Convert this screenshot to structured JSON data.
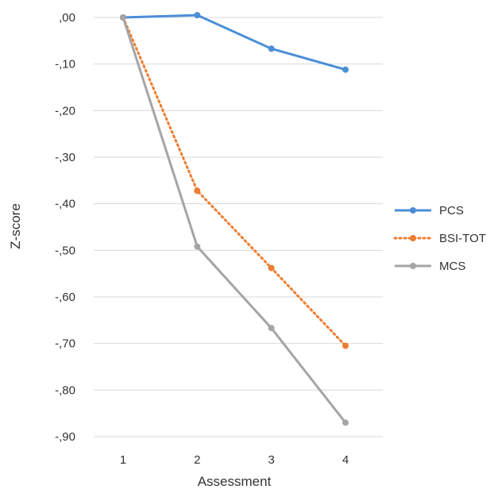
{
  "chart_data": {
    "type": "line",
    "title": "",
    "xlabel": "Assessment",
    "ylabel": "Z-score",
    "x": [
      1,
      2,
      3,
      4
    ],
    "ylim": [
      -0.9,
      0.0
    ],
    "y_ticks": [
      0.0,
      -0.1,
      -0.2,
      -0.3,
      -0.4,
      -0.5,
      -0.6,
      -0.7,
      -0.8,
      -0.9
    ],
    "y_tick_labels": [
      ",00",
      "-,10",
      "-,20",
      "-,30",
      "-,40",
      "-,50",
      "-,60",
      "-,70",
      "-,80",
      "-,90"
    ],
    "x_tick_labels": [
      "1",
      "2",
      "3",
      "4"
    ],
    "grid": "horizontal",
    "legend_position": "right",
    "series": [
      {
        "name": "PCS",
        "values": [
          0.0,
          0.005,
          -0.067,
          -0.112
        ],
        "color": "#4a8fd6",
        "dash": "solid"
      },
      {
        "name": "BSI-TOT",
        "values": [
          0.0,
          -0.372,
          -0.538,
          -0.705
        ],
        "color": "#ed7d31",
        "dash": "dotted"
      },
      {
        "name": "MCS",
        "values": [
          0.0,
          -0.492,
          -0.667,
          -0.87
        ],
        "color": "#a5a5a5",
        "dash": "solid"
      }
    ]
  }
}
